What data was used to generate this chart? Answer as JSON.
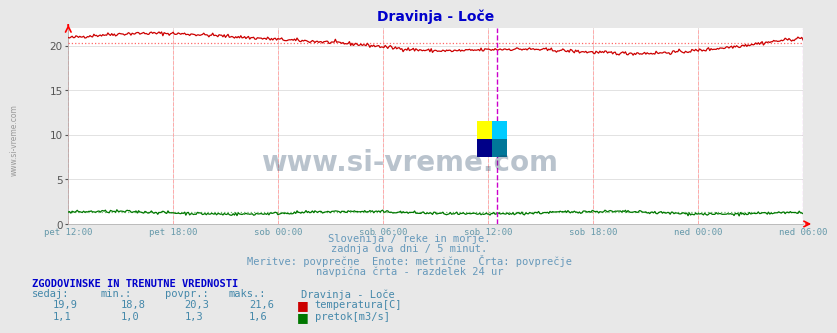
{
  "title": "Dravinja - Loče",
  "title_color": "#0000cc",
  "bg_color": "#e8e8e8",
  "plot_bg_color": "#ffffff",
  "grid_color": "#cccccc",
  "x_labels": [
    "pet 12:00",
    "pet 18:00",
    "sob 00:00",
    "sob 06:00",
    "sob 12:00",
    "sob 18:00",
    "ned 00:00",
    "ned 06:00"
  ],
  "x_label_color": "#6699aa",
  "n_points": 576,
  "temp_avg": 20.3,
  "temp_color": "#cc0000",
  "flow_color": "#007700",
  "flow_avg": 1.3,
  "avg_line_color_temp": "#ff6666",
  "avg_line_color_flow": "#66bb66",
  "vline_color_now": "#cc00cc",
  "vline_color_tick": "#ff9999",
  "watermark": "www.si-vreme.com",
  "subtitle1": "Slovenija / reke in morje.",
  "subtitle2": "zadnja dva dni / 5 minut.",
  "subtitle3": "Meritve: povprečne  Enote: metrične  Črta: povprečje",
  "subtitle4": "navpična črta - razdelek 24 ur",
  "subtitle_color": "#6699bb",
  "table_header": "ZGODOVINSKE IN TRENUTNE VREDNOSTI",
  "table_header_color": "#0000cc",
  "col_headers": [
    "sedaj:",
    "min.:",
    "povpr.:",
    "maks.:",
    "Dravinja - Loče"
  ],
  "row1_vals": [
    "19,9",
    "18,8",
    "20,3",
    "21,6"
  ],
  "row1_label": "temperatura[C]",
  "row2_vals": [
    "1,1",
    "1,0",
    "1,3",
    "1,6"
  ],
  "row2_label": "pretok[m3/s]",
  "table_val_color": "#4488aa",
  "legend_red_color": "#cc0000",
  "legend_green_color": "#007700",
  "ymin": 0,
  "ymax": 22,
  "logo_colors": [
    "#ffff00",
    "#00ccff",
    "#000088",
    "#006688"
  ]
}
